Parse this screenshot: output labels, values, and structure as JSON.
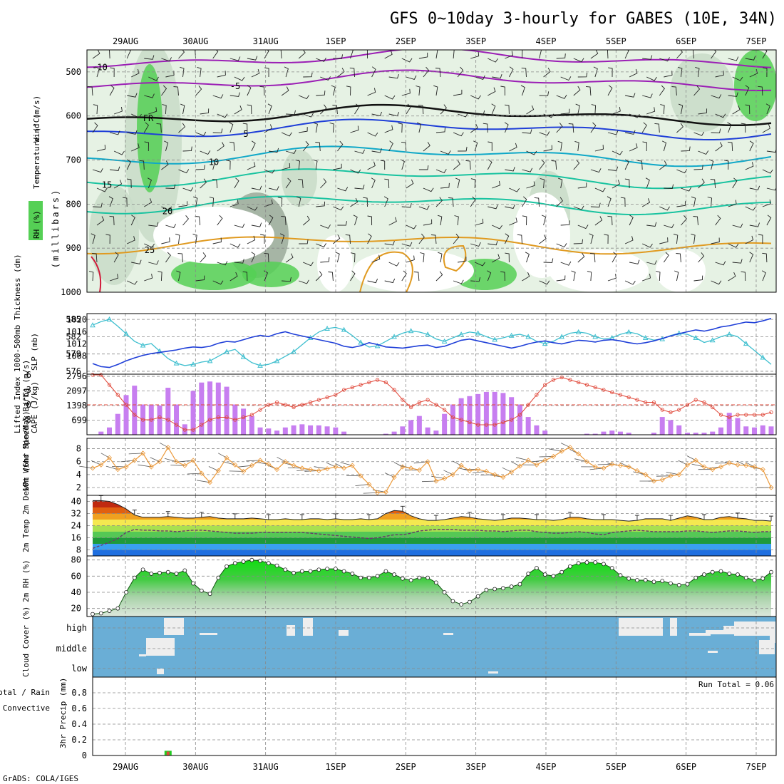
{
  "title": "GFS 0~10day 3-hourly for GABES (10E, 34N)",
  "footer": "GrADS: COLA/IGES",
  "dates": [
    "29AUG",
    "30AUG",
    "31AUG",
    "1SEP",
    "2SEP",
    "3SEP",
    "4SEP",
    "5SEP",
    "6SEP",
    "7SEP"
  ],
  "colors": {
    "purple": "#9b1fb5",
    "blue": "#1f3fd8",
    "cyan": "#10a8c8",
    "teal": "#19c3a0",
    "orange": "#e09a20",
    "red": "#d11a3a",
    "rh_light": "#e6f2e4",
    "rh_mid": "#c8dcc8",
    "rh_dark": "#9aaa9a",
    "rh_green": "#55d055",
    "cloud": "#6aaed6",
    "cape": "#c77ef0",
    "lifted": "#e0483a",
    "wind10": "#ec9a3b",
    "thickness": "#3fbfcf",
    "slp": "#1f3fd8",
    "rh2m": "#22cc22"
  },
  "chart_data": [
    {
      "type": "area",
      "name": "upper-air",
      "ylabel": "(millibars)",
      "yticks": [
        500,
        600,
        700,
        800,
        900,
        1000
      ],
      "ylim": [
        450,
        1000
      ],
      "labels": {
        "wind": "Wind (m/s)",
        "temp": "Temperature (°C)",
        "rh": "RH (%)"
      },
      "isotherms": [
        {
          "label": "-10",
          "pressure": 470,
          "color_key": "purple"
        },
        {
          "label": "-5",
          "pressure": 520,
          "color_key": "purple"
        },
        {
          "label": "FR",
          "pressure": 598,
          "color_key": "black"
        },
        {
          "label": "5",
          "pressure": 630,
          "color_key": "blue"
        },
        {
          "label": "10",
          "pressure": 690,
          "color_key": "cyan"
        },
        {
          "label": "15",
          "pressure": 740,
          "color_key": "teal"
        },
        {
          "label": "20",
          "pressure": 800,
          "color_key": "teal"
        },
        {
          "label": "25",
          "pressure": 890,
          "color_key": "orange"
        }
      ]
    },
    {
      "type": "line",
      "name": "thickness-slp",
      "ylabel_left": "1000-500mb Thickness (dm)",
      "ylabel_right": "SLP (mb)",
      "left_ticks": [
        576,
        579,
        582,
        585
      ],
      "right_ticks": [
        1008,
        1012,
        1016,
        1020
      ],
      "series": [
        {
          "name": "1000-500mb Thickness",
          "axis": "left",
          "values": [
            584.0,
            584.6,
            585.0,
            583.8,
            582.5,
            581.2,
            580.5,
            580.8,
            579.5,
            578.2,
            577.4,
            577.0,
            577.2,
            577.6,
            577.8,
            578.6,
            579.4,
            579.8,
            578.5,
            577.5,
            577.0,
            577.2,
            577.8,
            578.6,
            579.4,
            580.6,
            581.8,
            582.8,
            583.4,
            583.6,
            583.2,
            582.2,
            581.0,
            580.2,
            580.4,
            581.2,
            582.0,
            582.6,
            583.0,
            582.8,
            582.4,
            581.6,
            581.2,
            581.8,
            582.4,
            582.8,
            582.6,
            582.0,
            581.5,
            581.8,
            582.2,
            582.4,
            582.0,
            581.2,
            580.8,
            581.2,
            582.0,
            582.6,
            582.8,
            582.6,
            582.0,
            581.6,
            581.8,
            582.4,
            582.8,
            582.5,
            581.8,
            581.4,
            581.6,
            582.2,
            582.6,
            582.4,
            581.8,
            581.0,
            581.4,
            582.0,
            582.4,
            582.0,
            580.8,
            579.6,
            578.4,
            577.2
          ]
        },
        {
          "name": "SLP",
          "axis": "right",
          "values": [
            1005.5,
            1004.5,
            1004.2,
            1005.2,
            1006.4,
            1007.4,
            1008.2,
            1008.8,
            1009.2,
            1009.6,
            1010.0,
            1010.6,
            1011.0,
            1010.8,
            1011.2,
            1012.2,
            1012.8,
            1012.6,
            1013.4,
            1014.2,
            1014.8,
            1014.4,
            1015.4,
            1016.0,
            1015.2,
            1014.6,
            1014.0,
            1013.4,
            1012.8,
            1012.2,
            1011.2,
            1010.8,
            1011.4,
            1012.4,
            1011.8,
            1011.0,
            1010.8,
            1010.6,
            1011.0,
            1011.4,
            1011.6,
            1010.8,
            1011.2,
            1012.2,
            1013.2,
            1013.6,
            1013.0,
            1012.4,
            1011.8,
            1011.2,
            1010.6,
            1011.2,
            1012.0,
            1012.6,
            1013.0,
            1012.4,
            1012.0,
            1012.6,
            1013.2,
            1013.0,
            1012.6,
            1013.2,
            1013.4,
            1013.0,
            1012.4,
            1012.0,
            1012.4,
            1013.0,
            1013.8,
            1014.6,
            1015.4,
            1016.0,
            1016.6,
            1016.2,
            1016.8,
            1017.6,
            1018.0,
            1018.6,
            1019.2,
            1019.0,
            1019.6,
            1020.4
          ]
        }
      ]
    },
    {
      "type": "bar",
      "name": "cape-li",
      "ylabel_left": "Lifted Index",
      "ylabel_right": "CAPE (J/kg)",
      "left_ticks": [
        -3,
        0,
        3,
        6
      ],
      "right_ticks": [
        699,
        1398,
        2097,
        2796
      ],
      "cape": [
        0,
        150,
        350,
        1000,
        1900,
        2350,
        1450,
        1450,
        1400,
        2250,
        1450,
        500,
        2100,
        2500,
        2550,
        2500,
        2300,
        1450,
        1250,
        900,
        350,
        300,
        200,
        350,
        450,
        500,
        450,
        450,
        400,
        350,
        150,
        0,
        0,
        0,
        0,
        50,
        150,
        400,
        700,
        900,
        350,
        200,
        1000,
        1450,
        1750,
        1850,
        1950,
        2050,
        2050,
        2000,
        1800,
        1450,
        850,
        450,
        200,
        0,
        0,
        0,
        0,
        50,
        50,
        150,
        200,
        150,
        100,
        0,
        0,
        100,
        850,
        700,
        450,
        100,
        100,
        100,
        150,
        350,
        1050,
        800,
        400,
        350,
        450,
        400
      ],
      "lifted": [
        6,
        6,
        4,
        2,
        0,
        -2,
        -3,
        -3,
        -2.5,
        -3,
        -4,
        -5,
        -5,
        -4,
        -3,
        -2.5,
        -2.5,
        -3,
        -2.5,
        -2,
        -1,
        0,
        0.5,
        0,
        -0.5,
        0,
        0.5,
        1,
        1.5,
        2,
        3,
        3.5,
        4,
        4.5,
        5,
        4.5,
        3,
        1,
        -0.5,
        0.5,
        1,
        0,
        -1,
        -2.5,
        -3,
        -3.5,
        -4,
        -4,
        -4,
        -3.5,
        -3,
        -2,
        0,
        2,
        4,
        5,
        5.5,
        5,
        4.5,
        4,
        3.5,
        3,
        2.5,
        2,
        1.5,
        1,
        0.5,
        0.5,
        -1,
        -1.5,
        -1,
        0,
        1,
        0.5,
        -0.5,
        -2,
        -2.5,
        -2,
        -2,
        -2,
        -2,
        -1.5
      ]
    },
    {
      "type": "line",
      "name": "wind10",
      "ylabel": "10m Wind Speed & Barbs (m/s)",
      "left_ticks": [
        2,
        4,
        6,
        8
      ],
      "ylim": [
        0.8,
        9.6
      ],
      "values": [
        5.0,
        5.5,
        6.6,
        4.8,
        5.2,
        6.2,
        7.3,
        5.2,
        6.0,
        8.2,
        6.0,
        5.4,
        6.2,
        4.2,
        2.8,
        4.6,
        6.6,
        5.5,
        4.5,
        5.4,
        6.2,
        5.6,
        4.8,
        6.0,
        5.4,
        5.0,
        4.8,
        4.6,
        4.9,
        5.2,
        5.0,
        5.4,
        3.8,
        2.5,
        1.2,
        1.3,
        3.6,
        5.2,
        5.0,
        4.7,
        6.0,
        3.0,
        3.4,
        4.0,
        5.4,
        4.6,
        4.8,
        4.5,
        4.0,
        3.6,
        4.4,
        5.3,
        6.2,
        5.5,
        6.2,
        6.8,
        7.6,
        8.2,
        7.2,
        6.0,
        5.2,
        5.0,
        5.6,
        5.4,
        5.2,
        4.6,
        4.0,
        3.0,
        3.2,
        3.8,
        4.0,
        5.5,
        6.2,
        5.2,
        4.8,
        5.2,
        5.8,
        5.5,
        5.4,
        5.2,
        4.8,
        2.0
      ]
    },
    {
      "type": "area",
      "name": "temp2m",
      "ylabel": "2m Temp 2m DewPt (6hr Min/Max) (°C)",
      "left_ticks": [
        8,
        16,
        24,
        32,
        40
      ],
      "ylim": [
        4,
        44
      ],
      "temp": [
        40.5,
        40.5,
        40.0,
        38.0,
        35.0,
        31.0,
        29.5,
        29.5,
        29.5,
        30.0,
        29.5,
        29.0,
        29.0,
        29.5,
        30.0,
        29.0,
        28.5,
        28.5,
        28.5,
        29.0,
        28.5,
        28.0,
        28.0,
        28.5,
        28.0,
        28.0,
        28.5,
        28.5,
        28.0,
        28.5,
        28.0,
        28.0,
        28.5,
        28.0,
        28.5,
        32.0,
        34.0,
        33.5,
        30.5,
        28.5,
        27.5,
        27.5,
        28.0,
        29.0,
        30.0,
        29.5,
        28.5,
        28.0,
        27.5,
        28.0,
        29.0,
        29.0,
        28.5,
        28.0,
        28.0,
        27.5,
        28.0,
        29.5,
        29.5,
        28.5,
        28.0,
        28.0,
        28.0,
        27.5,
        27.0,
        27.5,
        28.5,
        28.5,
        28.5,
        27.5,
        29.0,
        30.5,
        29.5,
        28.0,
        28.0,
        29.5,
        30.0,
        29.0,
        28.5,
        27.5,
        27.5,
        27.0
      ],
      "dew": [
        9.0,
        11.0,
        13.0,
        15.5,
        19.5,
        21.5,
        21.0,
        21.0,
        20.5,
        20.5,
        20.0,
        20.5,
        21.0,
        21.0,
        20.5,
        20.0,
        19.5,
        19.0,
        19.0,
        19.0,
        19.5,
        19.5,
        19.5,
        19.5,
        19.5,
        19.5,
        19.0,
        18.5,
        18.0,
        17.5,
        17.0,
        16.5,
        16.0,
        15.5,
        16.0,
        17.0,
        18.0,
        18.0,
        19.0,
        20.5,
        21.0,
        21.5,
        21.5,
        21.5,
        21.0,
        21.0,
        21.0,
        20.5,
        20.5,
        20.0,
        20.5,
        21.0,
        21.0,
        20.0,
        19.5,
        19.0,
        19.0,
        19.5,
        20.0,
        19.5,
        18.5,
        18.0,
        19.5,
        20.0,
        20.5,
        21.0,
        20.5,
        20.0,
        20.0,
        20.0,
        20.0,
        20.5,
        20.5,
        20.0,
        19.5,
        20.0,
        20.5,
        20.5,
        20.0,
        19.5,
        20.0,
        20.0
      ]
    },
    {
      "type": "area",
      "name": "rh2m",
      "ylabel": "2m RH (%)",
      "left_ticks": [
        20,
        40,
        60,
        80
      ],
      "ylim": [
        10,
        85
      ],
      "values": [
        13,
        14,
        17,
        20,
        40,
        58,
        68,
        63,
        64,
        65,
        63,
        67,
        51,
        42,
        38,
        58,
        72,
        76,
        78,
        80,
        79,
        76,
        73,
        68,
        64,
        66,
        66,
        68,
        69,
        69,
        66,
        63,
        58,
        58,
        60,
        66,
        62,
        57,
        55,
        58,
        58,
        52,
        40,
        29,
        25,
        28,
        35,
        43,
        44,
        45,
        47,
        50,
        63,
        70,
        62,
        60,
        65,
        72,
        76,
        77,
        77,
        75,
        70,
        61,
        57,
        55,
        55,
        53,
        54,
        51,
        49,
        50,
        58,
        62,
        65,
        66,
        63,
        62,
        58,
        55,
        57,
        65
      ]
    },
    {
      "type": "heatmap",
      "name": "cloud-cover",
      "ylabel": "Cloud Cover (%)",
      "ylevels": [
        "high",
        "middle",
        "low"
      ]
    },
    {
      "type": "bar",
      "name": "precip",
      "ylabel": "3hr Precip (mm)",
      "left_labels": [
        "Total / Rain",
        "Convective"
      ],
      "left_ticks": [
        0,
        0.2,
        0.4,
        0.6,
        0.8
      ],
      "run_total_label": "Run Total = 0.06",
      "bars": [
        {
          "index": 9,
          "total": 0.06,
          "rain": 0.05
        }
      ]
    }
  ]
}
